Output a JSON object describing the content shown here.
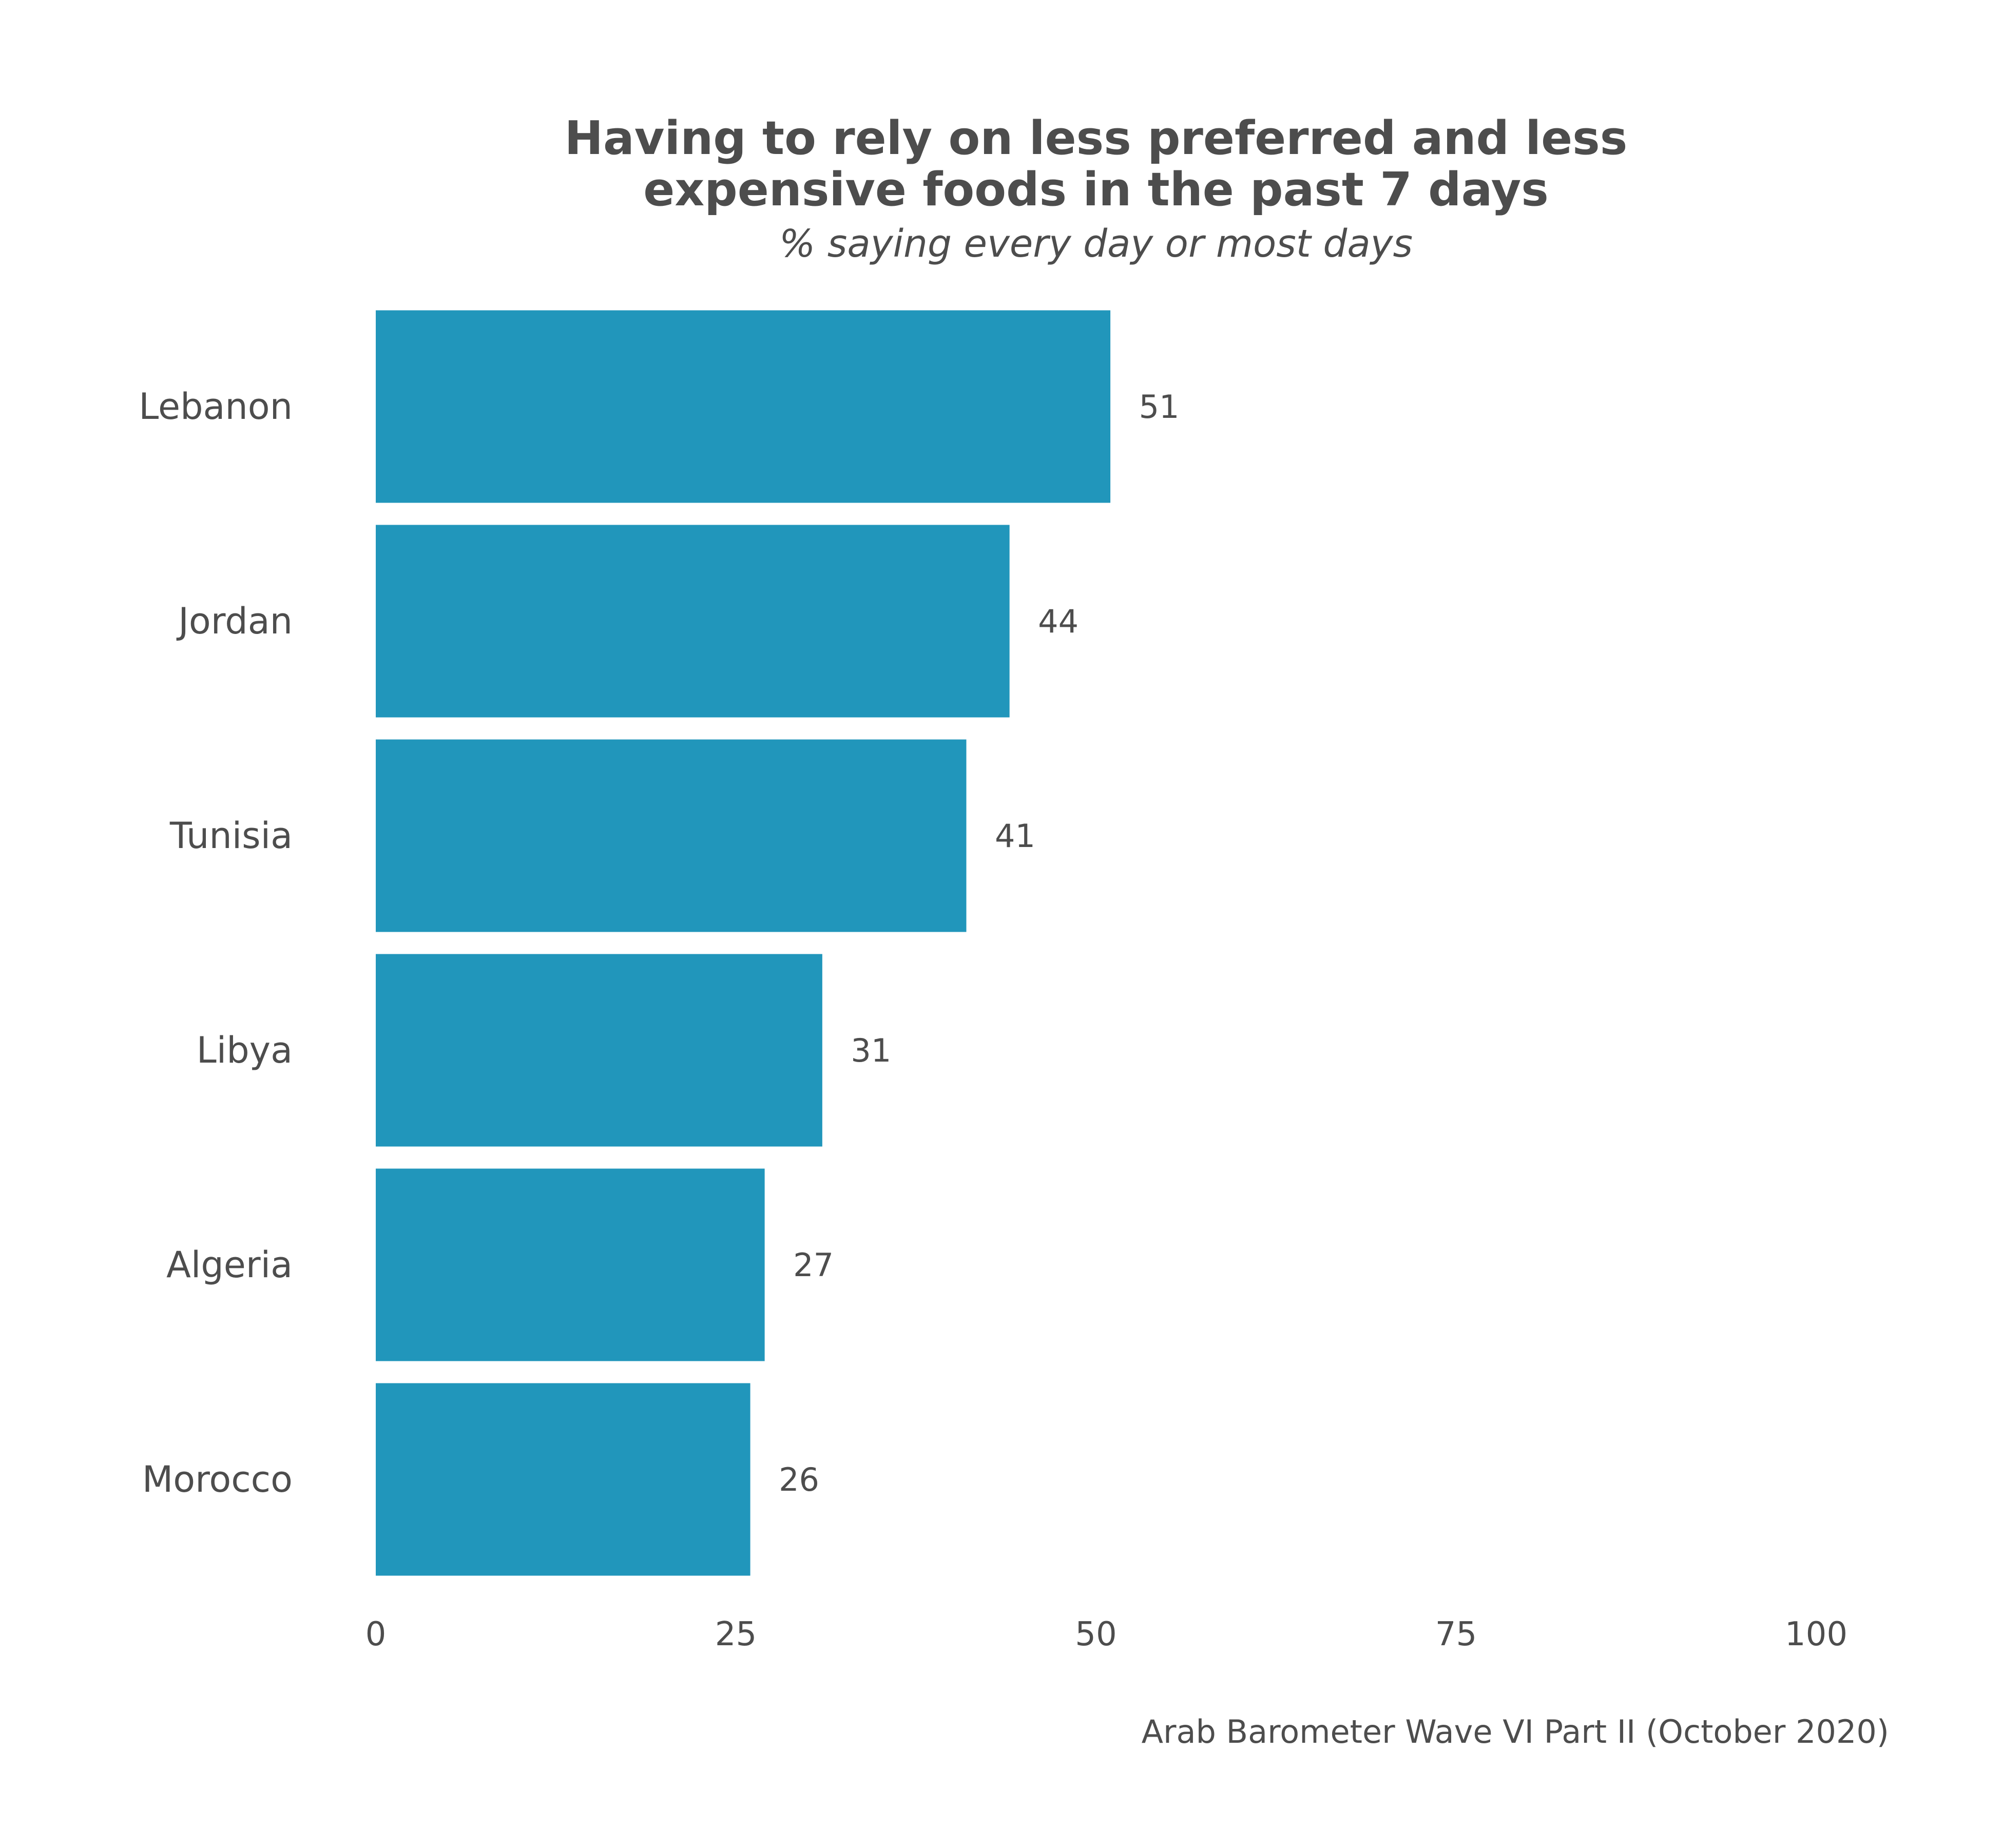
{
  "chart_data": {
    "type": "bar",
    "orientation": "horizontal",
    "title_lines": [
      "Having to rely on less preferred and less",
      "expensive foods in the past 7 days"
    ],
    "subtitle": "% saying every day or most days",
    "categories": [
      "Lebanon",
      "Jordan",
      "Tunisia",
      "Libya",
      "Algeria",
      "Morocco"
    ],
    "values": [
      51,
      44,
      41,
      31,
      27,
      26
    ],
    "xlim": [
      0,
      100
    ],
    "xticks": [
      0,
      25,
      50,
      75,
      100
    ],
    "xlabel": "",
    "ylabel": "",
    "grid": false,
    "bar_color": "#2196bb",
    "caption": "Arab Barometer Wave VI Part II (October 2020)"
  }
}
